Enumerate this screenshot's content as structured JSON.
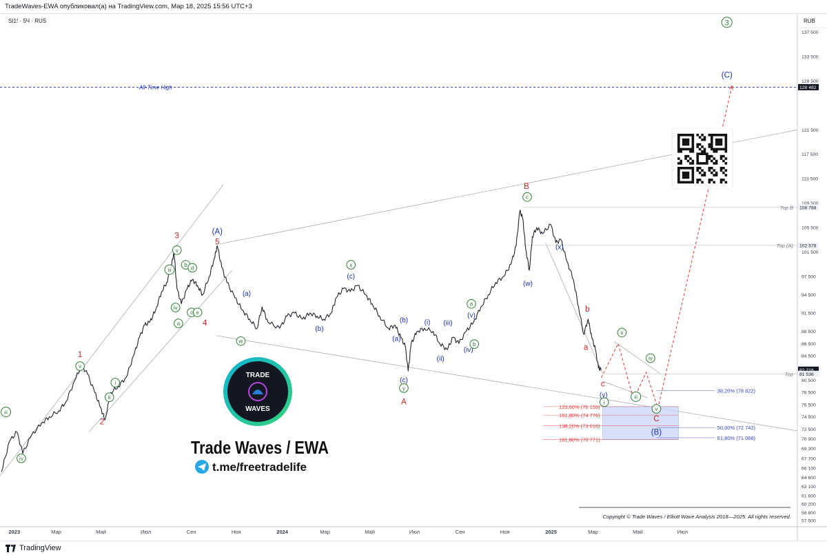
{
  "header": {
    "published": "TradeWaves-EWA опубликовал(а) на TradingView.com, Мар 18, 2025 15:56 UTC+3"
  },
  "footer": {
    "brand": "TradingView",
    "logo_icon": "tradingview-logo-icon"
  },
  "chart_data": {
    "type": "line",
    "title": "",
    "symbol": "SI1! · 5Ч · RUS",
    "currency": "RUB",
    "y_range": [
      56500,
      140500
    ],
    "x_range": [
      "2022-12-20",
      "2025-12-10"
    ],
    "grid": false,
    "legend": "none",
    "x_ticks": [
      {
        "date": "2023-01-01",
        "label": "2023",
        "bold": true
      },
      {
        "date": "2023-03-01",
        "label": "Мар"
      },
      {
        "date": "2023-05-01",
        "label": "Май"
      },
      {
        "date": "2023-07-01",
        "label": "Июл"
      },
      {
        "date": "2023-09-01",
        "label": "Сен"
      },
      {
        "date": "2023-11-01",
        "label": "Ноя"
      },
      {
        "date": "2024-01-01",
        "label": "2024",
        "bold": true
      },
      {
        "date": "2024-03-01",
        "label": "Мар"
      },
      {
        "date": "2024-05-01",
        "label": "Май"
      },
      {
        "date": "2024-07-01",
        "label": "Июл"
      },
      {
        "date": "2024-09-01",
        "label": "Сен"
      },
      {
        "date": "2024-11-01",
        "label": "Ноя"
      },
      {
        "date": "2025-01-01",
        "label": "2025",
        "bold": true
      },
      {
        "date": "2025-03-01",
        "label": "Мар"
      },
      {
        "date": "2025-05-01",
        "label": "Май"
      },
      {
        "date": "2025-07-01",
        "label": "Июл"
      }
    ],
    "y_ticks": [
      {
        "value": 137500,
        "label": "137 500"
      },
      {
        "value": 133500,
        "label": "133 500"
      },
      {
        "value": 129500,
        "label": "129 500"
      },
      {
        "value": 121500,
        "label": "121 500"
      },
      {
        "value": 117500,
        "label": "117 500"
      },
      {
        "value": 113500,
        "label": "113 500"
      },
      {
        "value": 109500,
        "label": "109 500"
      },
      {
        "value": 105500,
        "label": "105 500"
      },
      {
        "value": 101500,
        "label": "101 500"
      },
      {
        "value": 97500,
        "label": "97 500"
      },
      {
        "value": 94500,
        "label": "94 500"
      },
      {
        "value": 91500,
        "label": "91 500"
      },
      {
        "value": 88500,
        "label": "88 500"
      },
      {
        "value": 86500,
        "label": "86 500"
      },
      {
        "value": 84500,
        "label": "84 500"
      },
      {
        "value": 80500,
        "label": "80 500"
      },
      {
        "value": 78500,
        "label": "78 500"
      },
      {
        "value": 76500,
        "label": "76 500"
      },
      {
        "value": 74500,
        "label": "74 500"
      },
      {
        "value": 72500,
        "label": "72 500"
      },
      {
        "value": 70900,
        "label": "70 900"
      },
      {
        "value": 69300,
        "label": "69 300"
      },
      {
        "value": 67700,
        "label": "67 700"
      },
      {
        "value": 66100,
        "label": "66 100"
      },
      {
        "value": 64600,
        "label": "64 600"
      },
      {
        "value": 63100,
        "label": "63 100"
      },
      {
        "value": 61600,
        "label": "61 600"
      },
      {
        "value": 60200,
        "label": "60 200"
      },
      {
        "value": 58800,
        "label": "58 800"
      },
      {
        "value": 57500,
        "label": "57 500"
      }
    ],
    "price_badges": [
      {
        "value": 128482,
        "label": "128 482",
        "style": "dark"
      },
      {
        "value": 108788,
        "label": "108 788",
        "style": "light"
      },
      {
        "value": 102578,
        "label": "102 578",
        "style": "light"
      },
      {
        "value": 82216,
        "label": "82 216",
        "style": "dark"
      },
      {
        "value": 81536,
        "label": "81 536",
        "style": "light"
      }
    ],
    "h_levels": [
      {
        "value": 128482,
        "label": "All-Time High",
        "style": "ath"
      },
      {
        "value": 108788,
        "label": "Top B",
        "style": "level"
      },
      {
        "value": 102578,
        "label": "Top (A)",
        "style": "level"
      },
      {
        "value": 81536,
        "label": "Top",
        "style": "level"
      }
    ],
    "price": [
      [
        "2022-12-22",
        65500
      ],
      [
        "2023-01-02",
        70500
      ],
      [
        "2023-01-12",
        72000
      ],
      [
        "2023-01-20",
        68500
      ],
      [
        "2023-02-01",
        71500
      ],
      [
        "2023-02-15",
        73500
      ],
      [
        "2023-02-25",
        74500
      ],
      [
        "2023-03-10",
        75500
      ],
      [
        "2023-03-20",
        77000
      ],
      [
        "2023-04-01",
        80500
      ],
      [
        "2023-04-10",
        83000
      ],
      [
        "2023-04-18",
        81500
      ],
      [
        "2023-04-28",
        78500
      ],
      [
        "2023-05-06",
        76000
      ],
      [
        "2023-05-12",
        74000
      ],
      [
        "2023-05-20",
        78500
      ],
      [
        "2023-05-30",
        79500
      ],
      [
        "2023-06-10",
        81000
      ],
      [
        "2023-06-20",
        84500
      ],
      [
        "2023-06-28",
        87500
      ],
      [
        "2023-07-05",
        89500
      ],
      [
        "2023-07-12",
        90000
      ],
      [
        "2023-07-20",
        92000
      ],
      [
        "2023-07-28",
        95000
      ],
      [
        "2023-08-04",
        96500
      ],
      [
        "2023-08-10",
        99000
      ],
      [
        "2023-08-14",
        101500
      ],
      [
        "2023-08-18",
        95500
      ],
      [
        "2023-08-24",
        93000
      ],
      [
        "2023-09-01",
        95500
      ],
      [
        "2023-09-08",
        97000
      ],
      [
        "2023-09-15",
        96000
      ],
      [
        "2023-09-22",
        94500
      ],
      [
        "2023-10-01",
        97500
      ],
      [
        "2023-10-08",
        100500
      ],
      [
        "2023-10-12",
        102500
      ],
      [
        "2023-10-18",
        99000
      ],
      [
        "2023-10-25",
        96500
      ],
      [
        "2023-11-05",
        94000
      ],
      [
        "2023-11-15",
        92000
      ],
      [
        "2023-11-25",
        90500
      ],
      [
        "2023-12-05",
        89000
      ],
      [
        "2023-12-12",
        92500
      ],
      [
        "2023-12-20",
        90000
      ],
      [
        "2024-01-05",
        89000
      ],
      [
        "2024-01-15",
        91000
      ],
      [
        "2024-01-25",
        91500
      ],
      [
        "2024-02-05",
        90500
      ],
      [
        "2024-02-15",
        91500
      ],
      [
        "2024-02-25",
        91000
      ],
      [
        "2024-03-05",
        90500
      ],
      [
        "2024-03-15",
        91500
      ],
      [
        "2024-03-22",
        94000
      ],
      [
        "2024-04-01",
        95500
      ],
      [
        "2024-04-10",
        95000
      ],
      [
        "2024-04-20",
        96000
      ],
      [
        "2024-05-01",
        94500
      ],
      [
        "2024-05-10",
        93000
      ],
      [
        "2024-05-20",
        91000
      ],
      [
        "2024-06-01",
        89000
      ],
      [
        "2024-06-10",
        89500
      ],
      [
        "2024-06-18",
        87500
      ],
      [
        "2024-06-24",
        86000
      ],
      [
        "2024-06-28",
        82000
      ],
      [
        "2024-07-02",
        86500
      ],
      [
        "2024-07-10",
        88500
      ],
      [
        "2024-07-20",
        89000
      ],
      [
        "2024-08-01",
        88500
      ],
      [
        "2024-08-10",
        86500
      ],
      [
        "2024-08-20",
        85500
      ],
      [
        "2024-08-28",
        87500
      ],
      [
        "2024-09-05",
        86500
      ],
      [
        "2024-09-15",
        88500
      ],
      [
        "2024-09-25",
        90000
      ],
      [
        "2024-10-05",
        92500
      ],
      [
        "2024-10-15",
        94500
      ],
      [
        "2024-10-25",
        96500
      ],
      [
        "2024-11-05",
        97500
      ],
      [
        "2024-11-15",
        99500
      ],
      [
        "2024-11-22",
        102500
      ],
      [
        "2024-11-27",
        108200
      ],
      [
        "2024-12-01",
        107000
      ],
      [
        "2024-12-05",
        102000
      ],
      [
        "2024-12-10",
        98500
      ],
      [
        "2024-12-14",
        104000
      ],
      [
        "2024-12-20",
        105500
      ],
      [
        "2024-12-28",
        104500
      ],
      [
        "2025-01-08",
        106000
      ],
      [
        "2025-01-15",
        103000
      ],
      [
        "2025-01-22",
        103500
      ],
      [
        "2025-01-30",
        100000
      ],
      [
        "2025-02-08",
        97000
      ],
      [
        "2025-02-15",
        92500
      ],
      [
        "2025-02-22",
        88000
      ],
      [
        "2025-02-28",
        90500
      ],
      [
        "2025-03-05",
        87500
      ],
      [
        "2025-03-10",
        85500
      ],
      [
        "2025-03-14",
        82500
      ],
      [
        "2025-03-18",
        82216
      ]
    ],
    "wave_labels": [
      {
        "t": "(iii)",
        "d": "2022-12-28",
        "v": 75300,
        "c": "g"
      },
      {
        "t": "(iv)",
        "d": "2023-01-18",
        "v": 67700,
        "c": "g"
      },
      {
        "t": "1",
        "d": "2023-04-08",
        "v": 84700,
        "c": "r"
      },
      {
        "t": "(v)",
        "d": "2023-04-08",
        "v": 82800,
        "c": "g"
      },
      {
        "t": "(i)",
        "d": "2023-05-26",
        "v": 80100,
        "c": "g"
      },
      {
        "t": "(ii)",
        "d": "2023-05-18",
        "v": 77700,
        "c": "g"
      },
      {
        "t": "2",
        "d": "2023-05-08",
        "v": 73700,
        "c": "r"
      },
      {
        "t": "3",
        "d": "2023-08-18",
        "v": 104200,
        "c": "r"
      },
      {
        "t": "(v)",
        "d": "2023-08-18",
        "v": 101800,
        "c": "g"
      },
      {
        "t": "(iii)",
        "d": "2023-08-08",
        "v": 98600,
        "c": "g"
      },
      {
        "t": "(b)",
        "d": "2023-08-30",
        "v": 99400,
        "c": "g"
      },
      {
        "t": "(d)",
        "d": "2023-09-08",
        "v": 98900,
        "c": "g"
      },
      {
        "t": "(iv)",
        "d": "2023-08-16",
        "v": 92400,
        "c": "g"
      },
      {
        "t": "(a)",
        "d": "2023-08-20",
        "v": 89800,
        "c": "g"
      },
      {
        "t": "(c)",
        "d": "2023-09-07",
        "v": 91600,
        "c": "g"
      },
      {
        "t": "(e)",
        "d": "2023-09-15",
        "v": 91600,
        "c": "g"
      },
      {
        "t": "4",
        "d": "2023-09-25",
        "v": 89900,
        "c": "r"
      },
      {
        "t": "(A)",
        "d": "2023-10-12",
        "v": 104900,
        "c": "b"
      },
      {
        "t": "5",
        "d": "2023-10-12",
        "v": 103200,
        "c": "r"
      },
      {
        "t": "(a)",
        "d": "2023-11-21",
        "v": 94800,
        "c": "b"
      },
      {
        "t": "(w)",
        "d": "2023-11-13",
        "v": 86900,
        "c": "g"
      },
      {
        "t": "(b)",
        "d": "2024-02-28",
        "v": 89000,
        "c": "b"
      },
      {
        "t": "(x)",
        "d": "2024-04-11",
        "v": 99400,
        "c": "g"
      },
      {
        "t": "(c)",
        "d": "2024-04-11",
        "v": 97600,
        "c": "b"
      },
      {
        "t": "(a)",
        "d": "2024-06-12",
        "v": 87400,
        "c": "b"
      },
      {
        "t": "(b)",
        "d": "2024-06-22",
        "v": 90400,
        "c": "b"
      },
      {
        "t": "(c)",
        "d": "2024-06-22",
        "v": 80600,
        "c": "b"
      },
      {
        "t": "(y)",
        "d": "2024-06-22",
        "v": 79200,
        "c": "g"
      },
      {
        "t": "A",
        "d": "2024-06-22",
        "v": 77000,
        "c": "r"
      },
      {
        "t": "(i)",
        "d": "2024-07-24",
        "v": 90100,
        "c": "b"
      },
      {
        "t": "(iii)",
        "d": "2024-08-21",
        "v": 90000,
        "c": "b"
      },
      {
        "t": "(v)",
        "d": "2024-09-22",
        "v": 91200,
        "c": "b"
      },
      {
        "t": "(a)",
        "d": "2024-09-22",
        "v": 93000,
        "c": "g"
      },
      {
        "t": "(iv)",
        "d": "2024-09-18",
        "v": 85600,
        "c": "b"
      },
      {
        "t": "(b)",
        "d": "2024-09-26",
        "v": 86400,
        "c": "g"
      },
      {
        "t": "(ii)",
        "d": "2024-08-11",
        "v": 84100,
        "c": "b"
      },
      {
        "t": "B",
        "d": "2024-12-06",
        "v": 112300,
        "c": "r"
      },
      {
        "t": "(c)",
        "d": "2024-12-07",
        "v": 110500,
        "c": "g"
      },
      {
        "t": "(x)",
        "d": "2025-01-20",
        "v": 102400,
        "c": "b"
      },
      {
        "t": "(w)",
        "d": "2024-12-08",
        "v": 96400,
        "c": "b"
      },
      {
        "t": "b",
        "d": "2025-02-27",
        "v": 92200,
        "c": "r"
      },
      {
        "t": "a",
        "d": "2025-02-25",
        "v": 85900,
        "c": "r"
      },
      {
        "t": "c",
        "d": "2025-03-20",
        "v": 79900,
        "c": "r"
      },
      {
        "t": "(y)",
        "d": "2025-03-21",
        "v": 78200,
        "c": "b"
      },
      {
        "t": "(i)",
        "d": "2025-03-22",
        "v": 76900,
        "c": "g"
      },
      {
        "t": "(ii)",
        "d": "2025-04-15",
        "v": 88300,
        "c": "g"
      },
      {
        "t": "(iii)",
        "d": "2025-05-04",
        "v": 77800,
        "c": "g"
      },
      {
        "t": "(iv)",
        "d": "2025-05-24",
        "v": 84100,
        "c": "g"
      },
      {
        "t": "(v)",
        "d": "2025-06-01",
        "v": 75800,
        "c": "g"
      },
      {
        "t": "C",
        "d": "2025-06-01",
        "v": 74200,
        "c": "r"
      },
      {
        "t": "(B)",
        "d": "2025-06-01",
        "v": 72000,
        "c": "b"
      },
      {
        "t": "(3)",
        "d": "2025-09-05",
        "v": 139100,
        "c": "g"
      },
      {
        "t": "(C)",
        "d": "2025-09-05",
        "v": 130500,
        "c": "b"
      }
    ],
    "projection": [
      [
        "2025-03-18",
        80900
      ],
      [
        "2025-04-10",
        86500
      ],
      [
        "2025-05-01",
        77300
      ],
      [
        "2025-05-18",
        81800
      ],
      [
        "2025-06-03",
        75900
      ],
      [
        "2025-09-12",
        128700
      ]
    ],
    "fib_levels": [
      {
        "value": 78822,
        "label": "38,20% (78 822)",
        "color": "#3344cc",
        "side": "right"
      },
      {
        "value": 76159,
        "label": "123,60% (76 159)",
        "color": "#e53935",
        "side": "left"
      },
      {
        "value": 74776,
        "label": "161,80% (74 776)",
        "color": "#e53935",
        "side": "left"
      },
      {
        "value": 73016,
        "label": "138,20% (73 016)",
        "color": "#e53935",
        "side": "left"
      },
      {
        "value": 72742,
        "label": "50,00% (72 742)",
        "color": "#3344cc",
        "side": "right"
      },
      {
        "value": 70771,
        "label": "161,80% (70 771)",
        "color": "#e53935",
        "side": "left"
      },
      {
        "value": 71066,
        "label": "61,80% (71 066)",
        "color": "#3344cc",
        "side": "right"
      }
    ],
    "target_zone": {
      "from_value": 76159,
      "to_value": 70771
    },
    "copyright": "Copyright © Trade Waves / Elliott Wave Analysis 2018—2025. All rights reserved."
  },
  "branding": {
    "logo_top": "TRADE",
    "logo_bottom": "WAVES",
    "name": "Trade Waves / EWA",
    "telegram": "t.me/freetradelife",
    "telegram_icon": "telegram-icon",
    "qr_icon": "qr-code-icon"
  }
}
